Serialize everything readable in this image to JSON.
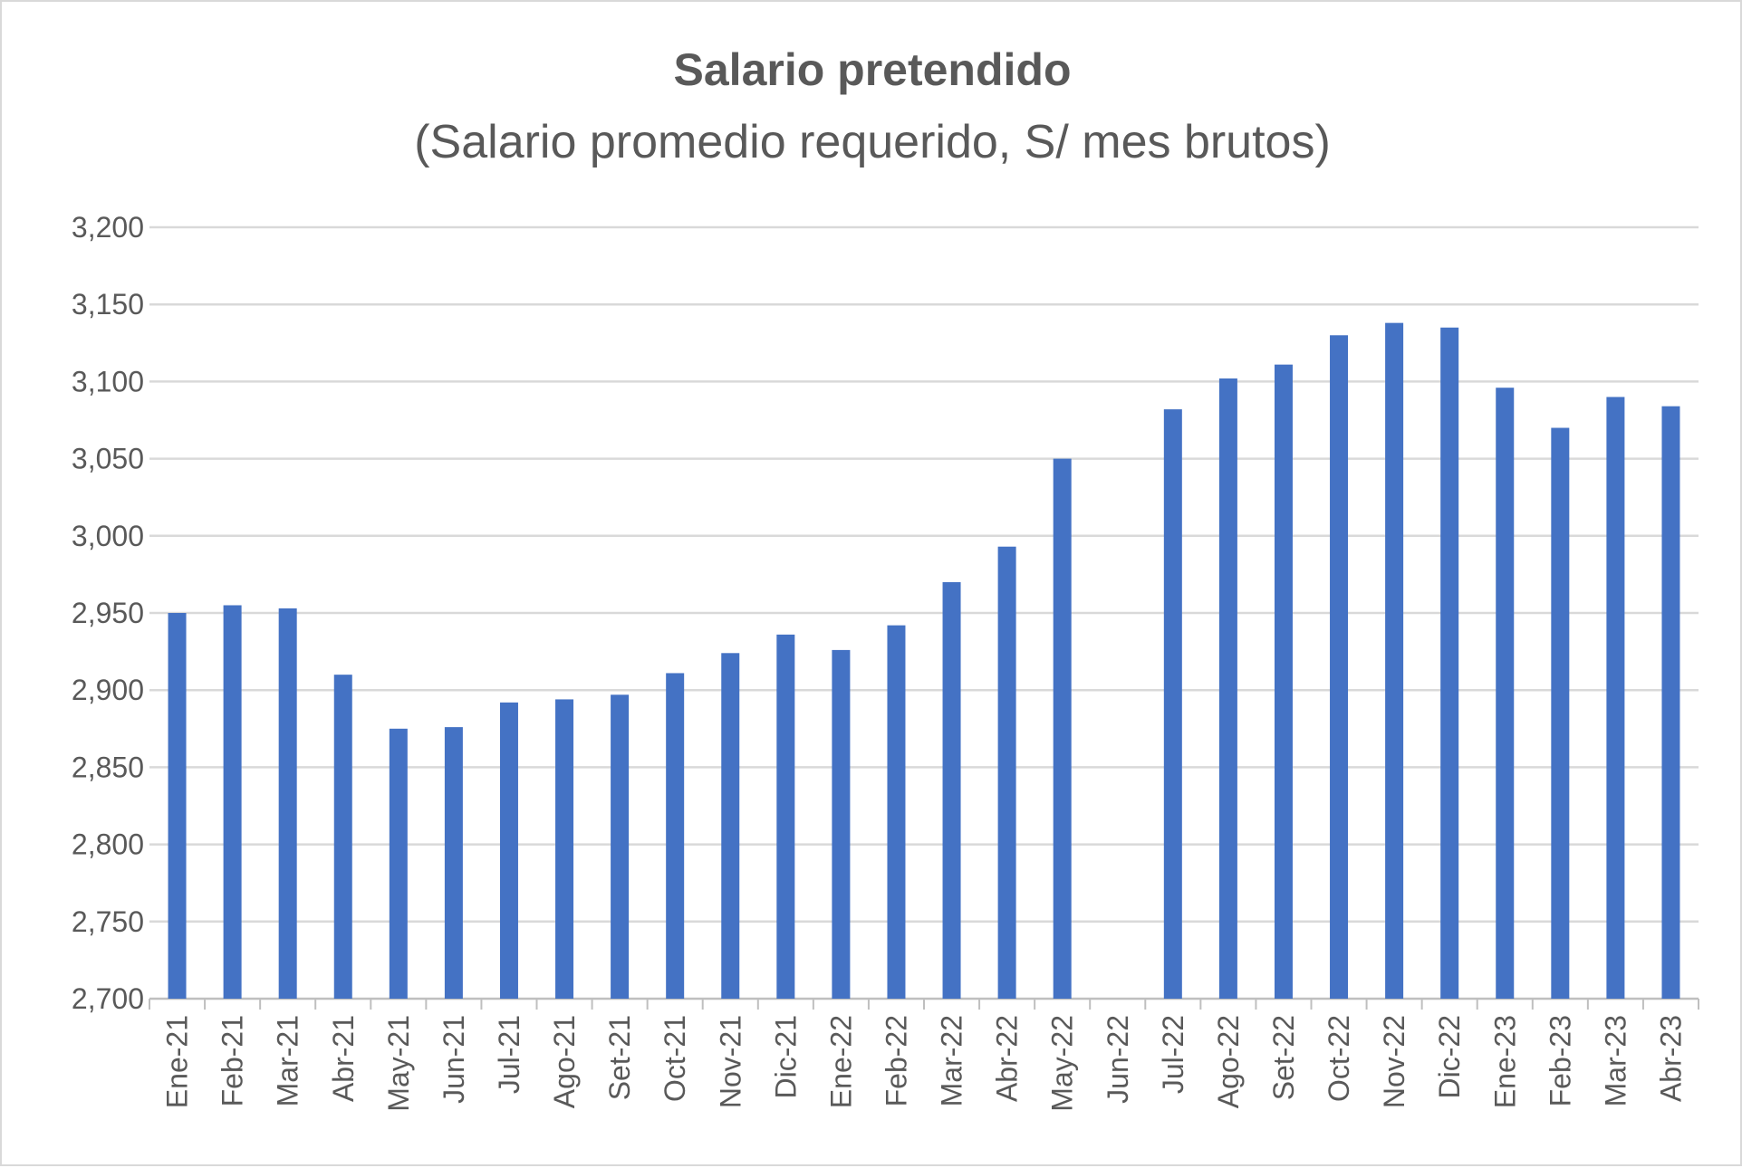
{
  "chart_data": {
    "type": "bar",
    "title": "Salario pretendido",
    "subtitle": "(Salario promedio requerido, S/ mes brutos)",
    "categories": [
      "Ene-21",
      "Feb-21",
      "Mar-21",
      "Abr-21",
      "May-21",
      "Jun-21",
      "Jul-21",
      "Ago-21",
      "Set-21",
      "Oct-21",
      "Nov-21",
      "Dic-21",
      "Ene-22",
      "Feb-22",
      "Mar-22",
      "Abr-22",
      "May-22",
      "Jun-22",
      "Jul-22",
      "Ago-22",
      "Set-22",
      "Oct-22",
      "Nov-22",
      "Dic-22",
      "Ene-23",
      "Feb-23",
      "Mar-23",
      "Abr-23"
    ],
    "values": [
      2950,
      2955,
      2953,
      2910,
      2875,
      2876,
      2892,
      2894,
      2897,
      2911,
      2924,
      2936,
      2926,
      2942,
      2970,
      2993,
      3050,
      null,
      3082,
      3102,
      3111,
      3130,
      3138,
      3135,
      3096,
      3070,
      3090,
      3084
    ],
    "ylim": [
      2700,
      3200
    ],
    "yticks": [
      "2,700",
      "2,750",
      "2,800",
      "2,850",
      "2,900",
      "2,950",
      "3,000",
      "3,050",
      "3,100",
      "3,150",
      "3,200"
    ],
    "grid": true,
    "legend": "none",
    "bar_color": "#4472C4",
    "grid_color": "#d9d9d9"
  }
}
